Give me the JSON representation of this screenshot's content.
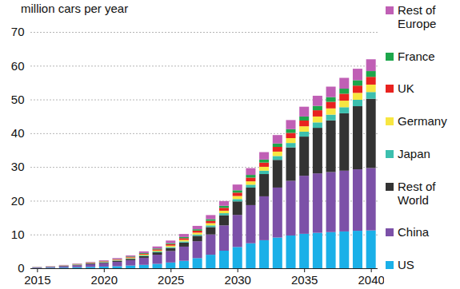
{
  "chart_data": {
    "type": "bar",
    "title": "million cars per year",
    "stacked": true,
    "grid": true,
    "legend": "right",
    "x": [
      2015,
      2016,
      2017,
      2018,
      2019,
      2020,
      2021,
      2022,
      2023,
      2024,
      2025,
      2026,
      2027,
      2028,
      2029,
      2030,
      2031,
      2032,
      2033,
      2034,
      2035,
      2036,
      2037,
      2038,
      2039,
      2040
    ],
    "xlim": [
      2014.5,
      2040.5
    ],
    "xticks": [
      2015,
      2020,
      2025,
      2030,
      2035,
      2040
    ],
    "ylim": [
      0,
      70
    ],
    "yticks": [
      0,
      10,
      20,
      30,
      40,
      50,
      60,
      70
    ],
    "series": [
      {
        "name": "US",
        "color": "#1ab0e8",
        "values": [
          0.1,
          0.15,
          0.2,
          0.3,
          0.4,
          0.5,
          0.6,
          0.8,
          1.0,
          1.3,
          1.7,
          2.2,
          3.0,
          4.0,
          5.2,
          6.3,
          7.4,
          8.3,
          9.1,
          9.7,
          10.2,
          10.5,
          10.7,
          10.9,
          11.1,
          11.2
        ]
      },
      {
        "name": "China",
        "color": "#7c51a8",
        "values": [
          0.15,
          0.25,
          0.4,
          0.6,
          0.8,
          1.0,
          1.3,
          1.6,
          2.1,
          2.7,
          3.4,
          4.2,
          5.0,
          6.0,
          7.5,
          9.5,
          11.3,
          13.0,
          14.8,
          16.2,
          17.2,
          17.6,
          17.8,
          18.0,
          18.2,
          18.5
        ]
      },
      {
        "name": "Rest of World",
        "color": "#333333",
        "values": [
          0.05,
          0.05,
          0.1,
          0.15,
          0.2,
          0.25,
          0.3,
          0.4,
          0.5,
          0.7,
          0.9,
          1.2,
          1.6,
          2.2,
          3.0,
          4.0,
          5.2,
          6.6,
          8.2,
          9.9,
          11.6,
          13.5,
          15.3,
          17.0,
          18.7,
          20.5
        ]
      },
      {
        "name": "Japan",
        "color": "#3cbfae",
        "values": [
          0.02,
          0.03,
          0.05,
          0.06,
          0.08,
          0.1,
          0.12,
          0.15,
          0.2,
          0.25,
          0.3,
          0.35,
          0.4,
          0.5,
          0.6,
          0.7,
          0.85,
          1.0,
          1.15,
          1.3,
          1.45,
          1.6,
          1.7,
          1.8,
          1.9,
          2.0
        ]
      },
      {
        "name": "Germany",
        "color": "#f7e641",
        "values": [
          0.02,
          0.03,
          0.05,
          0.07,
          0.1,
          0.12,
          0.15,
          0.2,
          0.25,
          0.3,
          0.4,
          0.45,
          0.55,
          0.65,
          0.75,
          0.9,
          1.0,
          1.15,
          1.3,
          1.45,
          1.6,
          1.75,
          1.85,
          1.95,
          2.05,
          2.2
        ]
      },
      {
        "name": "UK",
        "color": "#e8221f",
        "values": [
          0.02,
          0.03,
          0.05,
          0.07,
          0.1,
          0.12,
          0.15,
          0.2,
          0.25,
          0.35,
          0.45,
          0.5,
          0.6,
          0.7,
          0.85,
          1.0,
          1.1,
          1.25,
          1.4,
          1.55,
          1.7,
          1.85,
          1.95,
          2.05,
          2.15,
          2.3
        ]
      },
      {
        "name": "France",
        "color": "#1da64b",
        "values": [
          0.01,
          0.02,
          0.03,
          0.05,
          0.07,
          0.08,
          0.1,
          0.15,
          0.2,
          0.25,
          0.3,
          0.35,
          0.4,
          0.5,
          0.6,
          0.7,
          0.8,
          0.9,
          1.0,
          1.1,
          1.2,
          1.3,
          1.4,
          1.5,
          1.6,
          1.7
        ]
      },
      {
        "name": "Rest of Europe",
        "color": "#c05fb5",
        "values": [
          0.03,
          0.05,
          0.1,
          0.1,
          0.15,
          0.2,
          0.3,
          0.3,
          0.5,
          0.6,
          0.75,
          0.9,
          1.0,
          1.2,
          1.4,
          1.7,
          2.0,
          2.2,
          2.5,
          2.7,
          2.9,
          3.0,
          3.1,
          3.2,
          3.4,
          3.5
        ]
      }
    ]
  }
}
